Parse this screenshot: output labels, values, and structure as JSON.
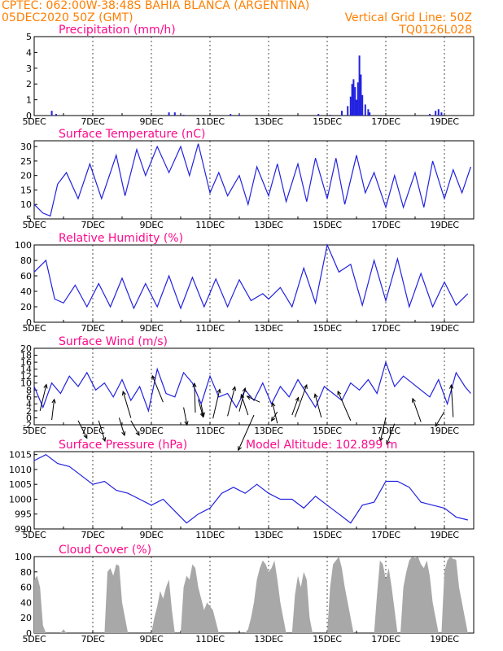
{
  "header": {
    "line1": "CPTEC:   062:00W-38:48S   BAHIA BLANCA (ARGENTINA)",
    "line2": "05DEC2020 50Z (GMT)",
    "grid_note": "Vertical Grid Line: 50Z",
    "code": "TQ0126L028"
  },
  "colors": {
    "header": "#ff7f00",
    "title": "#ff0a8c",
    "series": "#2222e0",
    "cloud": "#a8a8a8",
    "arrow": "#000000"
  },
  "chart_data": [
    {
      "type": "bar",
      "title": "Precipitation (mm/h)",
      "ylim": [
        0,
        5
      ],
      "yticks": [
        0,
        1,
        2,
        3,
        4,
        5
      ],
      "xticks": [
        "5DEC",
        "7DEC",
        "9DEC",
        "11DEC",
        "13DEC",
        "15DEC",
        "17DEC",
        "19DEC"
      ],
      "xlim": [
        0,
        15
      ],
      "bars": [
        [
          5.6,
          0.3
        ],
        [
          5.75,
          0.1
        ],
        [
          9.6,
          0.2
        ],
        [
          9.8,
          0.2
        ],
        [
          10.1,
          0.05
        ],
        [
          11.7,
          0.1
        ],
        [
          12.0,
          0.05
        ],
        [
          14.7,
          0.1
        ],
        [
          15.1,
          0.05
        ],
        [
          15.5,
          0.3
        ],
        [
          15.7,
          0.6
        ],
        [
          15.8,
          1.2
        ],
        [
          15.85,
          2.0
        ],
        [
          15.9,
          2.3
        ],
        [
          15.95,
          1.8
        ],
        [
          16.0,
          1.0
        ],
        [
          16.05,
          2.1
        ],
        [
          16.1,
          3.8
        ],
        [
          16.15,
          2.6
        ],
        [
          16.2,
          1.3
        ],
        [
          16.3,
          0.7
        ],
        [
          16.4,
          0.4
        ],
        [
          16.45,
          0.2
        ],
        [
          18.5,
          0.1
        ],
        [
          18.7,
          0.3
        ],
        [
          18.8,
          0.4
        ],
        [
          18.9,
          0.2
        ]
      ]
    },
    {
      "type": "line",
      "title": "Surface Temperature (nC)",
      "ylim": [
        5,
        32
      ],
      "yticks": [
        5,
        10,
        15,
        20,
        25,
        30
      ],
      "xticks": [
        "5DEC",
        "7DEC",
        "9DEC",
        "11DEC",
        "13DEC",
        "15DEC",
        "17DEC",
        "19DEC"
      ],
      "xlim": [
        0,
        15
      ],
      "x": [
        0,
        0.3,
        0.55,
        0.8,
        1.1,
        1.5,
        1.9,
        2.3,
        2.8,
        3.1,
        3.5,
        3.8,
        4.2,
        4.6,
        5.0,
        5.3,
        5.6,
        6.0,
        6.3,
        6.6,
        7.0,
        7.3,
        7.6,
        8.0,
        8.3,
        8.6,
        9.0,
        9.3,
        9.6,
        10.0,
        10.3,
        10.6,
        11.0,
        11.3,
        11.6,
        12.0,
        12.3,
        12.6,
        13.0,
        13.3,
        13.6,
        14.0,
        14.3,
        14.6,
        14.9
      ],
      "y": [
        10,
        7,
        6,
        17,
        21,
        12,
        24,
        12,
        27,
        13,
        29,
        20,
        30,
        21,
        30,
        20,
        31,
        14,
        21,
        13,
        20,
        10,
        23,
        13,
        24,
        11,
        24,
        11,
        26,
        12,
        26,
        10,
        27,
        14,
        21,
        9,
        20,
        9,
        21,
        9,
        25,
        12,
        22,
        14,
        23
      ]
    },
    {
      "type": "line",
      "title": "Relative Humidity (%)",
      "ylim": [
        0,
        100
      ],
      "yticks": [
        0,
        20,
        40,
        60,
        80,
        100
      ],
      "xticks": [
        "5DEC",
        "7DEC",
        "9DEC",
        "11DEC",
        "13DEC",
        "15DEC",
        "17DEC",
        "19DEC"
      ],
      "xlim": [
        0,
        15
      ],
      "x": [
        0,
        0.4,
        0.7,
        1.0,
        1.4,
        1.8,
        2.2,
        2.6,
        3.0,
        3.4,
        3.8,
        4.2,
        4.6,
        5.0,
        5.4,
        5.8,
        6.2,
        6.6,
        7.0,
        7.4,
        7.8,
        8.0,
        8.4,
        8.8,
        9.2,
        9.6,
        10.0,
        10.4,
        10.8,
        11.2,
        11.6,
        12.0,
        12.4,
        12.8,
        13.2,
        13.6,
        14.0,
        14.4,
        14.8
      ],
      "y": [
        65,
        80,
        30,
        25,
        48,
        20,
        50,
        20,
        57,
        18,
        50,
        20,
        60,
        18,
        58,
        20,
        56,
        20,
        55,
        28,
        37,
        30,
        45,
        20,
        70,
        25,
        100,
        65,
        75,
        22,
        80,
        28,
        82,
        20,
        63,
        20,
        52,
        22,
        37
      ]
    },
    {
      "type": "line",
      "title": "Surface Wind (m/s)",
      "ylim": [
        -2,
        20
      ],
      "yticks": [
        -2,
        0,
        2,
        4,
        6,
        8,
        10,
        12,
        14,
        16,
        18,
        20
      ],
      "xticks": [
        "5DEC",
        "7DEC",
        "9DEC",
        "11DEC",
        "13DEC",
        "15DEC",
        "17DEC",
        "19DEC"
      ],
      "xlim": [
        0,
        15
      ],
      "x": [
        0,
        0.3,
        0.6,
        0.9,
        1.2,
        1.5,
        1.8,
        2.1,
        2.4,
        2.7,
        3.0,
        3.3,
        3.6,
        3.9,
        4.2,
        4.5,
        4.8,
        5.1,
        5.4,
        5.7,
        6.0,
        6.3,
        6.6,
        6.9,
        7.2,
        7.5,
        7.8,
        8.1,
        8.4,
        8.7,
        9.0,
        9.3,
        9.6,
        9.9,
        10.2,
        10.5,
        10.8,
        11.1,
        11.4,
        11.7,
        12.0,
        12.3,
        12.6,
        12.9,
        13.2,
        13.5,
        13.8,
        14.1,
        14.4,
        14.7,
        14.9
      ],
      "y": [
        9,
        3,
        10,
        7,
        12,
        9,
        13,
        8,
        10,
        6,
        11,
        5,
        9,
        2,
        14,
        7,
        6,
        13,
        10,
        4,
        12,
        6,
        7,
        3,
        8,
        5,
        10,
        4,
        9,
        6,
        11,
        7,
        3,
        9,
        7,
        5,
        10,
        8,
        11,
        7,
        16,
        9,
        12,
        10,
        8,
        6,
        11,
        4,
        13,
        9,
        7
      ],
      "arrows": [
        [
          0.2,
          2,
          1.3,
          9
        ],
        [
          0.6,
          -0.6,
          0.5,
          7
        ],
        [
          1.5,
          -0.8,
          1.8,
          -6
        ],
        [
          2.2,
          -0.8,
          1.3,
          -7
        ],
        [
          2.9,
          0,
          1.1,
          -6
        ],
        [
          3.3,
          -0.8,
          1.7,
          -5
        ],
        [
          3.3,
          0,
          -1.6,
          9
        ],
        [
          4.4,
          4.5,
          -2.2,
          9
        ],
        [
          5.1,
          3,
          0.7,
          -6
        ],
        [
          5.5,
          1.5,
          -0.2,
          10
        ],
        [
          5.7,
          3.8,
          0.5,
          -4
        ],
        [
          5.6,
          5.3,
          1,
          -6
        ],
        [
          6.1,
          -0.2,
          1.4,
          10
        ],
        [
          6.6,
          0.5,
          1.5,
          10
        ],
        [
          7.0,
          1.8,
          1.2,
          8
        ],
        [
          7.3,
          0.8,
          -1.4,
          7
        ],
        [
          7.5,
          0.8,
          -3.2,
          -12
        ],
        [
          7.7,
          4.5,
          -2.6,
          2
        ],
        [
          8.3,
          -1.6,
          -1,
          7
        ],
        [
          8.3,
          1.7,
          -1.2,
          -3
        ],
        [
          8.8,
          0.8,
          1.3,
          6
        ],
        [
          8.9,
          0.2,
          2.4,
          11
        ],
        [
          9.8,
          0.1,
          -1.3,
          8
        ],
        [
          10.8,
          -0.8,
          -2.6,
          10
        ],
        [
          12.0,
          0.1,
          -1.1,
          -8
        ],
        [
          12.3,
          -1.7,
          -1.6,
          -7
        ],
        [
          13.2,
          -1.2,
          -1.7,
          8
        ],
        [
          14.0,
          1.8,
          -1.8,
          -5
        ],
        [
          14.3,
          0.2,
          -0.4,
          11
        ]
      ]
    },
    {
      "type": "line",
      "title": "Surface Pressure (hPa)",
      "subtitle": "Model Altitude: 102.899 m",
      "ylim": [
        990,
        1016
      ],
      "yticks": [
        990,
        995,
        1000,
        1005,
        1010,
        1015
      ],
      "xticks": [
        "5DEC",
        "7DEC",
        "9DEC",
        "11DEC",
        "13DEC",
        "15DEC",
        "17DEC",
        "19DEC"
      ],
      "xlim": [
        0,
        15
      ],
      "x": [
        0,
        0.4,
        0.8,
        1.2,
        1.6,
        2.0,
        2.4,
        2.8,
        3.2,
        3.6,
        4.0,
        4.4,
        4.8,
        5.2,
        5.6,
        6.0,
        6.4,
        6.8,
        7.2,
        7.6,
        8.0,
        8.4,
        8.8,
        9.2,
        9.6,
        10.0,
        10.4,
        10.8,
        11.2,
        11.6,
        12.0,
        12.4,
        12.8,
        13.2,
        13.6,
        14.0,
        14.4,
        14.8
      ],
      "y": [
        1013,
        1015,
        1012,
        1011,
        1008,
        1005,
        1006,
        1003,
        1002,
        1000,
        998,
        1000,
        996,
        992,
        995,
        997,
        1002,
        1004,
        1002,
        1005,
        1002,
        1000,
        1000,
        997,
        1001,
        998,
        995,
        992,
        998,
        999,
        1006,
        1006,
        1004,
        999,
        998,
        997,
        994,
        993
      ]
    },
    {
      "type": "area",
      "title": "Cloud Cover (%)",
      "ylim": [
        0,
        100
      ],
      "yticks": [
        0,
        20,
        40,
        60,
        80,
        100
      ],
      "xticks": [
        "5DEC",
        "7DEC",
        "9DEC",
        "11DEC",
        "13DEC",
        "15DEC",
        "17DEC",
        "19DEC"
      ],
      "xlim": [
        0,
        15
      ],
      "x": [
        0,
        0.1,
        0.2,
        0.3,
        0.4,
        0.5,
        0.6,
        0.7,
        0.8,
        0.9,
        1.0,
        1.1,
        1.2,
        1.3,
        1.4,
        1.5,
        1.6,
        1.7,
        1.8,
        1.9,
        2.0,
        2.1,
        2.2,
        2.3,
        2.4,
        2.5,
        2.6,
        2.7,
        2.8,
        2.9,
        3.0,
        3.1,
        3.2,
        3.3,
        3.4,
        3.5,
        3.6,
        3.7,
        3.8,
        3.9,
        4.0,
        4.1,
        4.2,
        4.3,
        4.4,
        4.5,
        4.6,
        4.7,
        4.8,
        4.9,
        5.0,
        5.1,
        5.2,
        5.3,
        5.4,
        5.5,
        5.6,
        5.7,
        5.8,
        5.9,
        6.0,
        6.1,
        6.2,
        6.3,
        6.4,
        6.5,
        6.6,
        6.7,
        6.8,
        6.9,
        7.0,
        7.1,
        7.2,
        7.3,
        7.4,
        7.5,
        7.6,
        7.7,
        7.8,
        7.9,
        8.0,
        8.1,
        8.2,
        8.3,
        8.4,
        8.5,
        8.6,
        8.7,
        8.8,
        8.9,
        9.0,
        9.1,
        9.2,
        9.3,
        9.4,
        9.5,
        9.6,
        9.7,
        9.8,
        9.9,
        10.0,
        10.1,
        10.2,
        10.3,
        10.4,
        10.5,
        10.6,
        10.7,
        10.8,
        10.9,
        11.0,
        11.1,
        11.2,
        11.3,
        11.4,
        11.5,
        11.6,
        11.7,
        11.8,
        11.9,
        12.0,
        12.1,
        12.2,
        12.3,
        12.4,
        12.5,
        12.6,
        12.7,
        12.8,
        12.9,
        13.0,
        13.1,
        13.2,
        13.3,
        13.4,
        13.5,
        13.6,
        13.7,
        13.8,
        13.9,
        14.0,
        14.1,
        14.2,
        14.3,
        14.4,
        14.5,
        14.6,
        14.7,
        14.8,
        14.9
      ],
      "y": [
        70,
        75,
        60,
        10,
        0,
        0,
        0,
        0,
        0,
        0,
        5,
        0,
        0,
        0,
        0,
        0,
        0,
        0,
        0,
        0,
        0,
        0,
        0,
        0,
        0,
        80,
        85,
        75,
        90,
        88,
        40,
        20,
        0,
        0,
        0,
        0,
        0,
        0,
        0,
        0,
        0,
        20,
        35,
        55,
        45,
        60,
        70,
        30,
        0,
        0,
        0,
        60,
        75,
        70,
        90,
        85,
        60,
        45,
        30,
        40,
        35,
        30,
        15,
        0,
        0,
        0,
        0,
        0,
        0,
        0,
        0,
        0,
        0,
        5,
        20,
        40,
        70,
        85,
        95,
        90,
        80,
        85,
        95,
        70,
        40,
        20,
        0,
        0,
        0,
        50,
        75,
        60,
        80,
        70,
        20,
        0,
        0,
        0,
        0,
        0,
        0,
        60,
        90,
        95,
        100,
        85,
        60,
        40,
        20,
        0,
        0,
        0,
        0,
        0,
        0,
        0,
        0,
        50,
        95,
        90,
        70,
        85,
        60,
        30,
        0,
        0,
        60,
        80,
        95,
        100,
        98,
        100,
        90,
        85,
        95,
        75,
        40,
        20,
        0,
        0,
        80,
        95,
        100,
        97,
        96,
        60,
        40,
        20,
        0,
        0
      ]
    }
  ]
}
